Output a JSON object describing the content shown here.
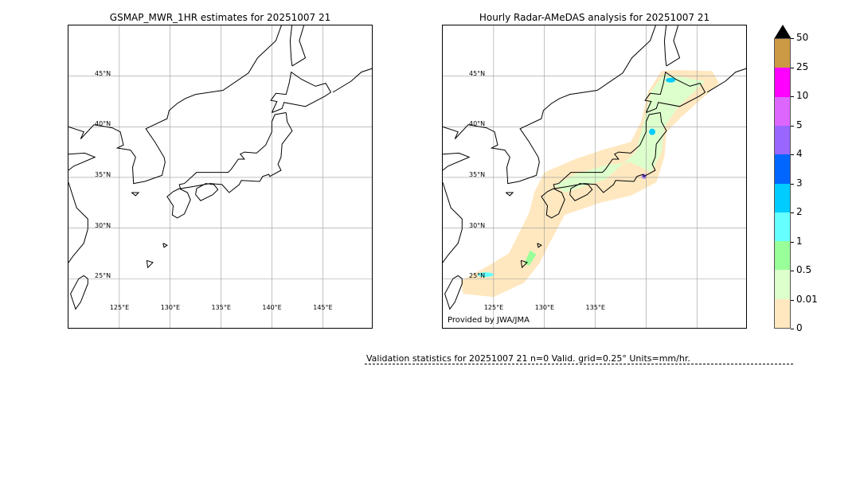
{
  "left_map": {
    "title": "GSMAP_MWR_1HR estimates for 20251007 21",
    "lat_labels": [
      "45°N",
      "40°N",
      "35°N",
      "30°N",
      "25°N"
    ],
    "lon_labels": [
      "125°E",
      "130°E",
      "135°E",
      "140°E",
      "145°E"
    ]
  },
  "right_map": {
    "title": "Hourly Radar-AMeDAS analysis for 20251007 21",
    "lat_labels": [
      "45°N",
      "40°N",
      "35°N",
      "30°N",
      "25°N"
    ],
    "lon_labels": [
      "125°E",
      "130°E",
      "135°E"
    ],
    "credit": "Provided by JWA/JMA"
  },
  "colorbar": {
    "ticks": [
      "0",
      "0.01",
      "0.5",
      "1",
      "2",
      "3",
      "4",
      "5",
      "10",
      "25",
      "50"
    ],
    "colors": [
      "#ffe8c0",
      "#ddffcc",
      "#99ff99",
      "#66ffff",
      "#00ccff",
      "#0066ff",
      "#9966ff",
      "#dd66ff",
      "#ff00ff",
      "#cc9944"
    ],
    "extend_color": "#000000"
  },
  "validation": {
    "text": "Validation statistics for 20251007 21  n=0 Valid. grid=0.25° Units=mm/hr."
  }
}
